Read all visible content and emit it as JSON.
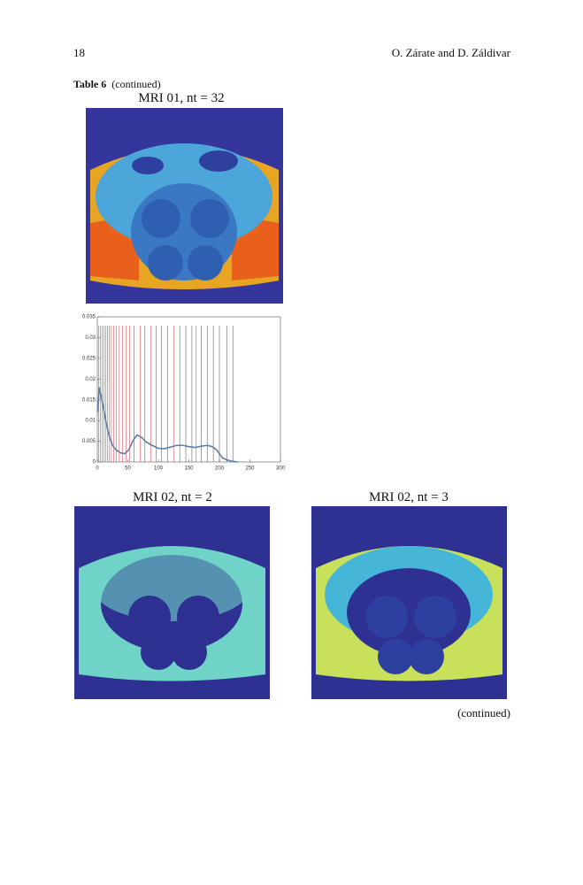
{
  "header": {
    "page_number": "18",
    "authors": "O. Zárate and D. Záldivar"
  },
  "table": {
    "label": "Table 6",
    "caption": "(continued)",
    "panels": [
      {
        "title": "MRI 01, nt = 32"
      },
      {
        "title": "MRI 02, nt = 2"
      },
      {
        "title": "MRI 02, nt = 3"
      }
    ],
    "footer": "(continued)"
  },
  "chart": {
    "type": "line",
    "x": [
      1,
      3,
      6,
      10,
      15,
      20,
      25,
      30,
      38,
      45,
      52,
      58,
      65,
      72,
      80,
      90,
      100,
      110,
      120,
      130,
      140,
      150,
      160,
      170,
      180,
      188,
      195,
      200,
      205,
      212,
      220,
      230
    ],
    "values": [
      0.012,
      0.018,
      0.016,
      0.013,
      0.009,
      0.006,
      0.004,
      0.003,
      0.0022,
      0.002,
      0.003,
      0.005,
      0.0065,
      0.006,
      0.0048,
      0.004,
      0.0033,
      0.0032,
      0.0036,
      0.004,
      0.004,
      0.0037,
      0.0035,
      0.0038,
      0.004,
      0.0037,
      0.003,
      0.002,
      0.001,
      0.0005,
      0.0002,
      0
    ],
    "color": "#5b7fa8",
    "red_thresholds": [
      2,
      5,
      8,
      11,
      14,
      17,
      20,
      23,
      27,
      31,
      36,
      41,
      47,
      53,
      70,
      88,
      125,
      162
    ],
    "black_thresholds": [
      60,
      78,
      96,
      105,
      115,
      135,
      145,
      155,
      170,
      180,
      190,
      200,
      212,
      222
    ],
    "xlim": [
      0,
      300
    ],
    "ylim": [
      0,
      0.035
    ],
    "xticks": [
      0,
      50,
      100,
      150,
      200,
      250,
      300
    ],
    "yticks": [
      0,
      0.005,
      0.01,
      0.015,
      0.02,
      0.025,
      0.03,
      0.035
    ]
  }
}
